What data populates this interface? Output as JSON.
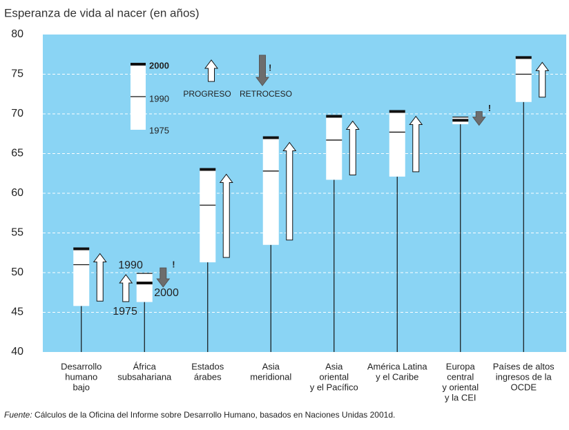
{
  "chart_data": {
    "type": "range",
    "title": "Esperanza de vida al nacer (en  años)",
    "categories": [
      [
        "Desarrollo",
        "humano",
        "bajo"
      ],
      [
        "África",
        "subsahariana"
      ],
      [
        "Estados",
        "árabes"
      ],
      [
        "Asia",
        "meridional"
      ],
      [
        "Asia",
        "oriental",
        "y el Pacífico"
      ],
      [
        "América Latina",
        "y el Caribe"
      ],
      [
        "Europa",
        "central",
        "y oriental",
        "y la CEI"
      ],
      [
        "Países de altos",
        "ingresos de la",
        "OCDE"
      ]
    ],
    "series": [
      {
        "name": "1975",
        "values": [
          45.8,
          46.3,
          51.3,
          53.5,
          61.7,
          62.1,
          68.7,
          71.5
        ]
      },
      {
        "name": "1990",
        "values": [
          51.0,
          49.9,
          58.5,
          62.8,
          66.7,
          67.7,
          69.6,
          75.0
        ]
      },
      {
        "name": "2000",
        "values": [
          53.0,
          48.7,
          63.0,
          67.0,
          69.7,
          70.3,
          69.2,
          77.1
        ]
      }
    ],
    "ylim": [
      40,
      80
    ],
    "yticks": [
      40,
      45,
      50,
      55,
      60,
      65,
      70,
      75,
      80
    ],
    "grid": true,
    "background": "#8ad4f4",
    "progress_label": "PROGRESO",
    "regress_label": "RETROCESO",
    "warning": "!",
    "annotations": [
      "1990",
      "1975",
      "2000"
    ],
    "source_label": "Fuente:",
    "source": " Cálculos de la Oficina del Informe sobre Desarrollo Humano, basados en Naciones Unidas 2001d."
  }
}
